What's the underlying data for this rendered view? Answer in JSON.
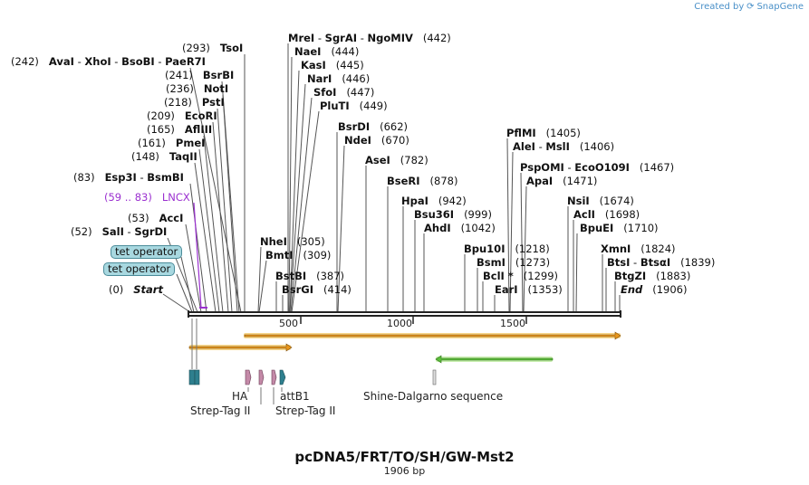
{
  "brand": {
    "created_by": "Created by",
    "name": "SnapGene"
  },
  "title": "pcDNA5/FRT/TO/SH/GW-Mst2",
  "length_text": "1906 bp",
  "ticks": [
    "500",
    "1000",
    "1500"
  ],
  "sites": [
    {
      "pos": "(442)",
      "names": [
        "MreI",
        "SgrAI",
        "NgoMIV"
      ],
      "pos_after": true
    },
    {
      "pos": "(444)",
      "names": [
        "NaeI"
      ],
      "pos_after": true
    },
    {
      "pos": "(445)",
      "names": [
        "KasI"
      ],
      "pos_after": true
    },
    {
      "pos": "(446)",
      "names": [
        "NarI"
      ],
      "pos_after": true
    },
    {
      "pos": "(447)",
      "names": [
        "SfoI"
      ],
      "pos_after": true
    },
    {
      "pos": "(449)",
      "names": [
        "PluTI"
      ],
      "pos_after": true
    },
    {
      "pos": "(662)",
      "names": [
        "BsrDI"
      ],
      "pos_after": true
    },
    {
      "pos": "(670)",
      "names": [
        "NdeI"
      ],
      "pos_after": true
    },
    {
      "pos": "(782)",
      "names": [
        "AseI"
      ],
      "pos_after": true
    },
    {
      "pos": "(878)",
      "names": [
        "BseRI"
      ],
      "pos_after": true
    },
    {
      "pos": "(942)",
      "names": [
        "HpaI"
      ],
      "pos_after": true
    },
    {
      "pos": "(999)",
      "names": [
        "Bsu36I"
      ],
      "pos_after": true
    },
    {
      "pos": "(1042)",
      "names": [
        "AhdI"
      ],
      "pos_after": true
    },
    {
      "pos": "(1405)",
      "names": [
        "PflMI"
      ],
      "pos_after": true
    },
    {
      "pos": "(1406)",
      "names": [
        "AleI",
        "MslI"
      ],
      "pos_after": true
    },
    {
      "pos": "(1467)",
      "names": [
        "PspOMI",
        "EcoO109I"
      ],
      "pos_after": true
    },
    {
      "pos": "(1471)",
      "names": [
        "ApaI"
      ],
      "pos_after": true
    },
    {
      "pos": "(1218)",
      "names": [
        "Bpu10I"
      ],
      "pos_after": true
    },
    {
      "pos": "(1273)",
      "names": [
        "BsmI"
      ],
      "pos_after": true
    },
    {
      "pos": "(1299)",
      "names": [
        "BclI *"
      ],
      "pos_after": true
    },
    {
      "pos": "(1353)",
      "names": [
        "EarI"
      ],
      "pos_after": true
    },
    {
      "pos": "(1674)",
      "names": [
        "NsiI"
      ],
      "pos_after": true
    },
    {
      "pos": "(1698)",
      "names": [
        "AclI"
      ],
      "pos_after": true
    },
    {
      "pos": "(1710)",
      "names": [
        "BpuEI"
      ],
      "pos_after": true
    },
    {
      "pos": "(1824)",
      "names": [
        "XmnI"
      ],
      "pos_after": true
    },
    {
      "pos": "(1839)",
      "names": [
        "BtsI",
        "BtsαI"
      ],
      "pos_after": true
    },
    {
      "pos": "(1883)",
      "names": [
        "BtgZI"
      ],
      "pos_after": true
    },
    {
      "pos": "(1906)",
      "names": [
        "End"
      ],
      "pos_after": true
    },
    {
      "pos": "(305)",
      "names": [
        "NheI"
      ],
      "pos_after": true
    },
    {
      "pos": "(309)",
      "names": [
        "BmtI"
      ],
      "pos_after": true
    },
    {
      "pos": "(387)",
      "names": [
        "BstBI"
      ],
      "pos_after": true
    },
    {
      "pos": "(414)",
      "names": [
        "BsrGI"
      ],
      "pos_after": true
    },
    {
      "pos": "(293)",
      "names": [
        "TsoI"
      ],
      "pos_after": false
    },
    {
      "pos": "(242)",
      "names": [
        "AvaI",
        "XhoI",
        "BsoBI",
        "PaeR7I"
      ],
      "pos_after": false
    },
    {
      "pos": "(241)",
      "names": [
        "BsrBI"
      ],
      "pos_after": false
    },
    {
      "pos": "(236)",
      "names": [
        "NotI"
      ],
      "pos_after": false
    },
    {
      "pos": "(218)",
      "names": [
        "PstI"
      ],
      "pos_after": false
    },
    {
      "pos": "(209)",
      "names": [
        "EcoRI"
      ],
      "pos_after": false
    },
    {
      "pos": "(165)",
      "names": [
        "AflIII"
      ],
      "pos_after": false
    },
    {
      "pos": "(161)",
      "names": [
        "PmeI"
      ],
      "pos_after": false
    },
    {
      "pos": "(148)",
      "names": [
        "TaqII"
      ],
      "pos_after": false
    },
    {
      "pos": "(83)",
      "names": [
        "Esp3I",
        "BsmBI"
      ],
      "pos_after": false
    },
    {
      "pos": "(53)",
      "names": [
        "AccI"
      ],
      "pos_after": false
    },
    {
      "pos": "(52)",
      "names": [
        "SalI",
        "SgrDI"
      ],
      "pos_after": false
    },
    {
      "pos": "(0)",
      "names": [
        "Start"
      ],
      "pos_after": false
    }
  ],
  "lncx": {
    "range": "(59 .. 83)",
    "name": "LNCX"
  },
  "operators": [
    "tet operator",
    "tet operator"
  ],
  "features": {
    "ha": "HA",
    "attb1": "attB1",
    "strep1": "Strep-Tag II",
    "strep2": "Strep-Tag II",
    "shine": "Shine-Dalgarno sequence"
  },
  "colors": {
    "orf": "#f0a830",
    "orf_border": "#7a4c10",
    "green": "#5bbf3a",
    "teal": "#2e7f8e",
    "pink": "#c48aa8",
    "lncx": "#9b30d0",
    "operator": "#a8d8e0"
  }
}
